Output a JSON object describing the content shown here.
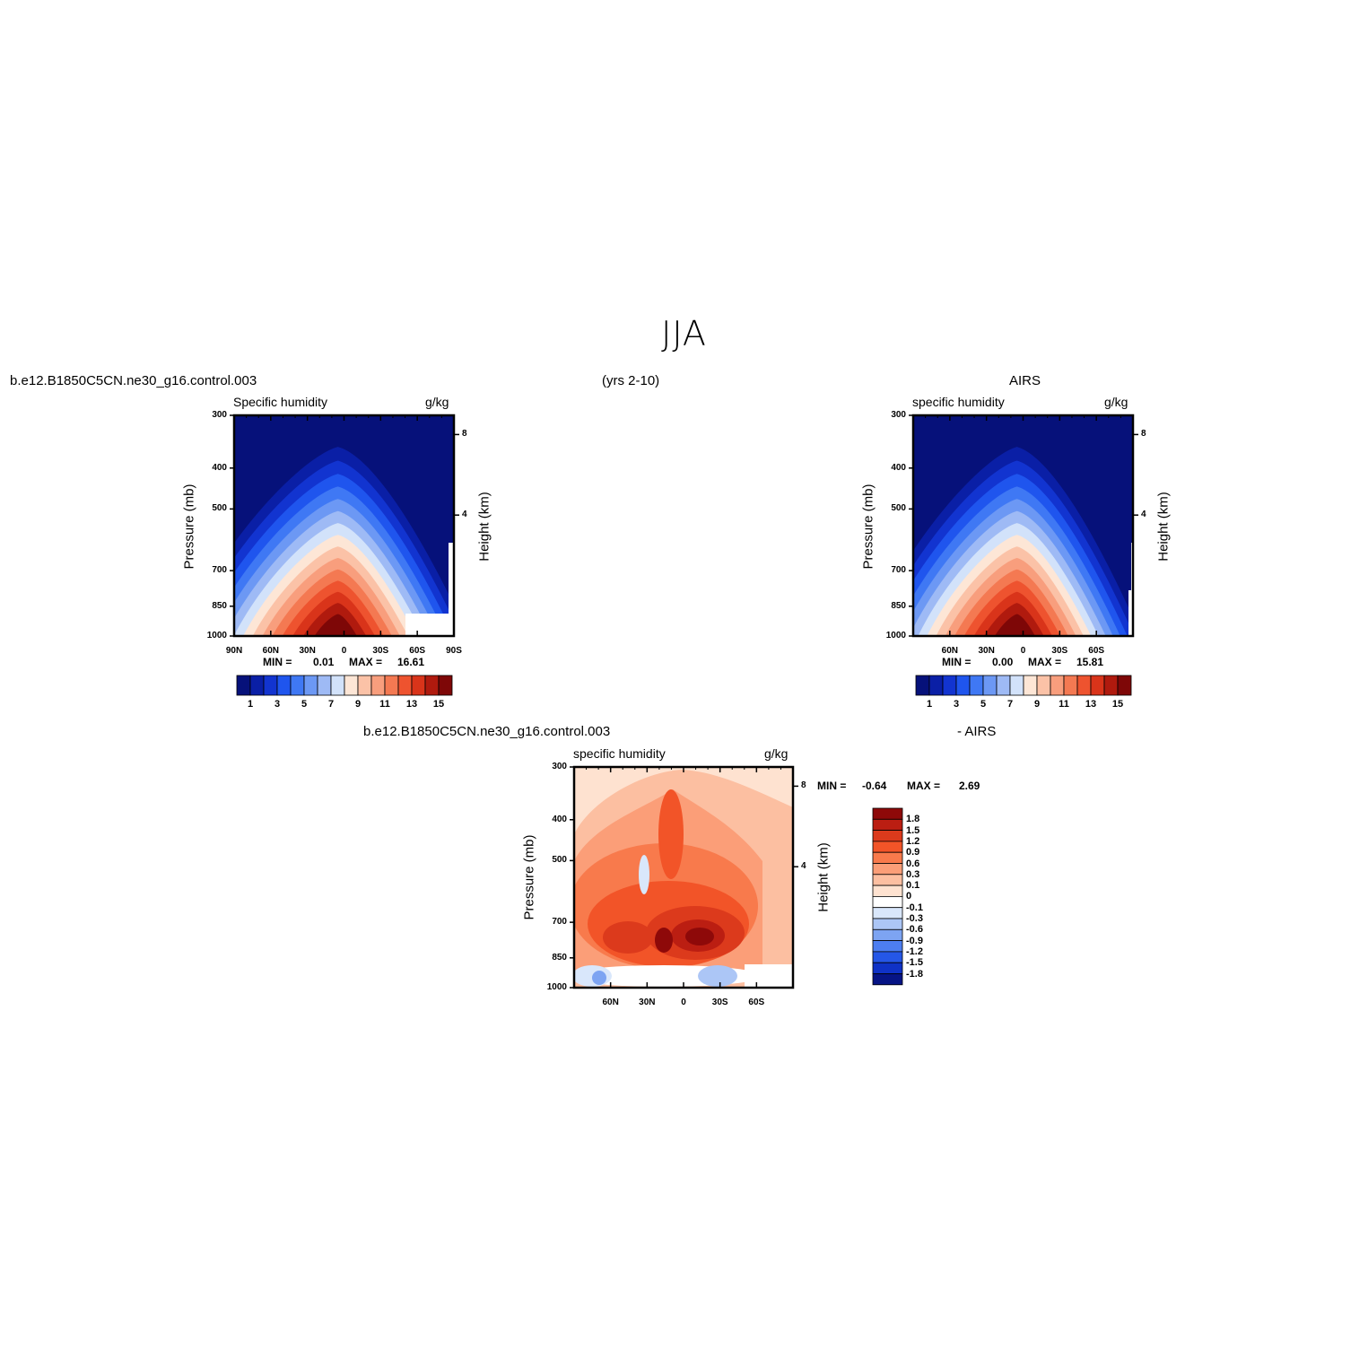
{
  "figure": {
    "title": "JJA",
    "left_label": "b.e12.B1850C5CN.ne30_g16.control.003",
    "center_label": "(yrs 2-10)",
    "right_label": "AIRS",
    "diff_label_left": "b.e12.B1850C5CN.ne30_g16.control.003",
    "diff_label_right": "- AIRS"
  },
  "panels": [
    {
      "id": "model",
      "variable": "Specific  humidity",
      "units": "g/kg",
      "ylabel": "Pressure  (mb)",
      "ylabel_right": "Height  (km)",
      "min_label": "MIN  =",
      "min_value": "0.01",
      "max_label": "MAX  =",
      "max_value": "16.61"
    },
    {
      "id": "obs",
      "variable": "specific  humidity",
      "units": "g/kg",
      "ylabel": "Pressure  (mb)",
      "ylabel_right": "Height  (km)",
      "min_label": "MIN  =",
      "min_value": "0.00",
      "max_label": "MAX  =",
      "max_value": "15.81"
    },
    {
      "id": "diff",
      "variable": "specific  humidity",
      "units": "g/kg",
      "ylabel": "Pressure  (mb)",
      "ylabel_right": "Height  (km)",
      "min_label": "MIN  =",
      "min_value": "-0.64",
      "max_label": "MAX  =",
      "max_value": "2.69"
    }
  ],
  "axes": {
    "pressure_ticks": [
      "300",
      "400",
      "500",
      "700",
      "850",
      "1000"
    ],
    "height_ticks": [
      "8",
      "4"
    ],
    "lat_ticks_full": [
      "90N",
      "60N",
      "30N",
      "0",
      "30S",
      "60S",
      "90S"
    ],
    "lat_ticks_short": [
      "60N",
      "30N",
      "0",
      "30S",
      "60S"
    ]
  },
  "colorbars": {
    "full": {
      "labels": [
        "1",
        "3",
        "5",
        "7",
        "9",
        "11",
        "13",
        "15"
      ],
      "colors": [
        "#06117a",
        "#0a1fa6",
        "#1234d0",
        "#1f55ee",
        "#3f78f4",
        "#6c98f4",
        "#9ebaf5",
        "#d2e2fa",
        "#fde6d6",
        "#fbc2a7",
        "#f89e7d",
        "#f47952",
        "#ee532f",
        "#d9341a",
        "#b01a0e",
        "#7e0707"
      ]
    },
    "diff": {
      "labels": [
        "1.8",
        "1.5",
        "1.2",
        "0.9",
        "0.6",
        "0.3",
        "0.1",
        "0",
        "-0.1",
        "-0.3",
        "-0.6",
        "-0.9",
        "-1.2",
        "-1.5",
        "-1.8"
      ],
      "colors": [
        "#8e0909",
        "#bb1e12",
        "#dc3a1c",
        "#f25428",
        "#f87a4c",
        "#fb9e78",
        "#fcbfa1",
        "#fee2d0",
        "#ffffff",
        "#d9e7fb",
        "#acc6f6",
        "#7da4f2",
        "#4d7ef1",
        "#2557e7",
        "#0f32c6",
        "#061485"
      ]
    }
  },
  "chart_data": [
    {
      "type": "heatmap",
      "title": "Specific  humidity",
      "units": "g/kg",
      "x": [
        "90N",
        "60N",
        "30N",
        "0",
        "30S",
        "60S",
        "90S"
      ],
      "y": [
        1000,
        850,
        700,
        500,
        400,
        300
      ],
      "ylabel": "Pressure  (mb)",
      "min": 0.01,
      "max": 16.61,
      "peak": {
        "lat": "~10N",
        "level": 1000,
        "value": 16.61
      }
    },
    {
      "type": "heatmap",
      "title": "specific  humidity",
      "units": "g/kg",
      "x": [
        "60N",
        "30N",
        "0",
        "30S",
        "60S"
      ],
      "y": [
        1000,
        850,
        700,
        500,
        400,
        300
      ],
      "ylabel": "Pressure  (mb)",
      "min": 0.0,
      "max": 15.81,
      "peak": {
        "lat": "~10N",
        "level": 1000,
        "value": 15.81
      }
    },
    {
      "type": "heatmap",
      "title": "specific  humidity",
      "units": "g/kg",
      "x": [
        "60N",
        "30N",
        "0",
        "30S",
        "60S"
      ],
      "y": [
        1000,
        850,
        700,
        500,
        400,
        300
      ],
      "ylabel": "Pressure  (mb)",
      "min": -0.64,
      "max": 2.69,
      "contour_levels": [
        -1.8,
        -1.5,
        -1.2,
        -0.9,
        -0.6,
        -0.3,
        -0.1,
        0,
        0.1,
        0.3,
        0.6,
        0.9,
        1.2,
        1.5,
        1.8
      ]
    }
  ]
}
